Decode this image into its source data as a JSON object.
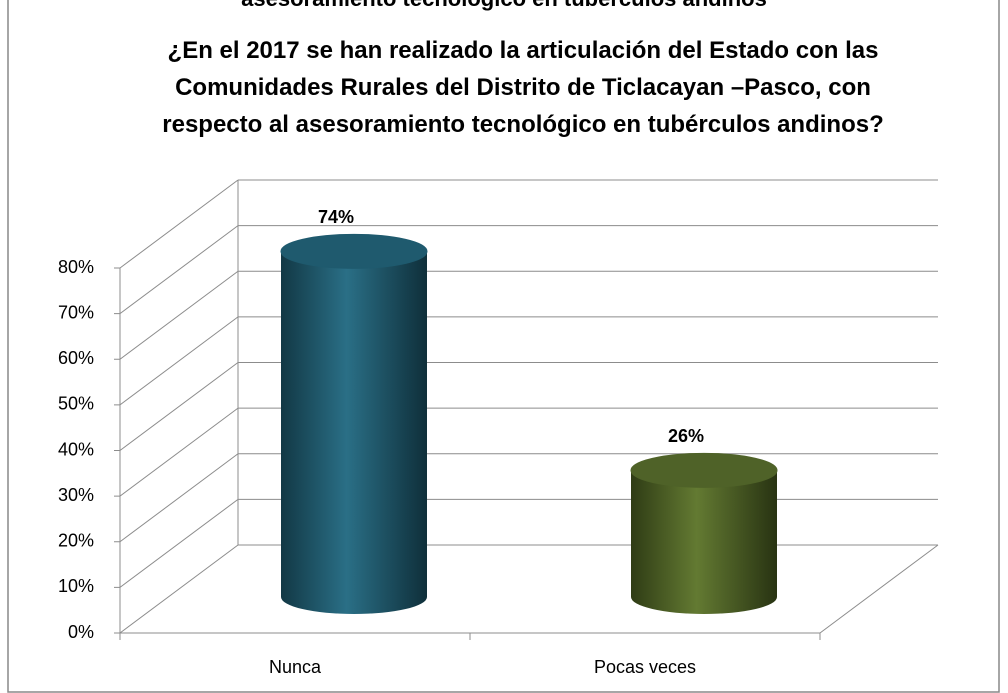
{
  "caption": "asesoramiento tecnológico en tubérculos andinos",
  "chart_data": {
    "type": "bar3d",
    "title": "¿En el 2017 se han realizado  la  articulación del Estado con las Comunidades Rurales del Distrito de Ticlacayan –Pasco, con respecto al asesoramiento tecnológico  en tubérculos andinos?",
    "categories": [
      "Nunca",
      "Pocas veces"
    ],
    "values": [
      74,
      26
    ],
    "value_labels": [
      "74%",
      "26%"
    ],
    "colors": [
      "#1f5a6e",
      "#4f6228"
    ],
    "ylim": [
      0,
      80
    ],
    "yticks": [
      {
        "value": 0,
        "label": "0%"
      },
      {
        "value": 10,
        "label": "10%"
      },
      {
        "value": 20,
        "label": "20%"
      },
      {
        "value": 30,
        "label": "30%"
      },
      {
        "value": 40,
        "label": "40%"
      },
      {
        "value": 50,
        "label": "50%"
      },
      {
        "value": 60,
        "label": "60%"
      },
      {
        "value": 70,
        "label": "70%"
      },
      {
        "value": 80,
        "label": "80%"
      }
    ],
    "grid": true
  }
}
